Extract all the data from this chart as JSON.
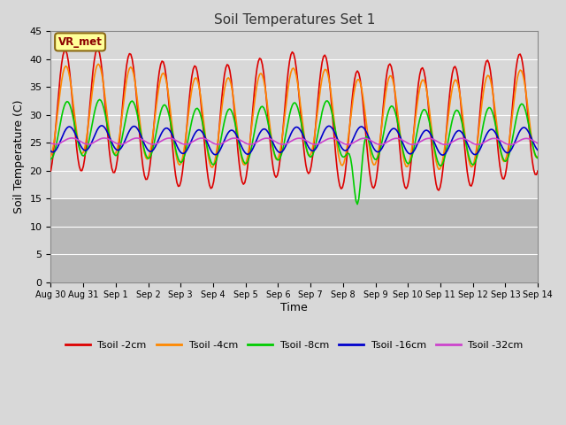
{
  "title": "Soil Temperatures Set 1",
  "xlabel": "Time",
  "ylabel": "Soil Temperature (C)",
  "ylim": [
    0,
    45
  ],
  "yticks": [
    0,
    5,
    10,
    15,
    20,
    25,
    30,
    35,
    40,
    45
  ],
  "date_labels": [
    "Aug 30",
    "Aug 31",
    "Sep 1",
    "Sep 2",
    "Sep 3",
    "Sep 4",
    "Sep 5",
    "Sep 6",
    "Sep 7",
    "Sep 8",
    "Sep 9",
    "Sep 10",
    "Sep 11",
    "Sep 12",
    "Sep 13",
    "Sep 14"
  ],
  "series": {
    "Tsoil -2cm": {
      "color": "#dd0000",
      "lw": 1.2
    },
    "Tsoil -4cm": {
      "color": "#ff8800",
      "lw": 1.2
    },
    "Tsoil -8cm": {
      "color": "#00cc00",
      "lw": 1.2
    },
    "Tsoil -16cm": {
      "color": "#0000cc",
      "lw": 1.2
    },
    "Tsoil -32cm": {
      "color": "#cc44cc",
      "lw": 1.2
    }
  },
  "annotation_text": "VR_met",
  "bg_color": "#d8d8d8",
  "upper_bg_color": "#d8d8d8",
  "lower_bg_color": "#b8b8b8",
  "grid_color": "#ffffff",
  "n_days": 15,
  "n_points": 360,
  "figsize": [
    6.4,
    4.8
  ],
  "dpi": 100
}
